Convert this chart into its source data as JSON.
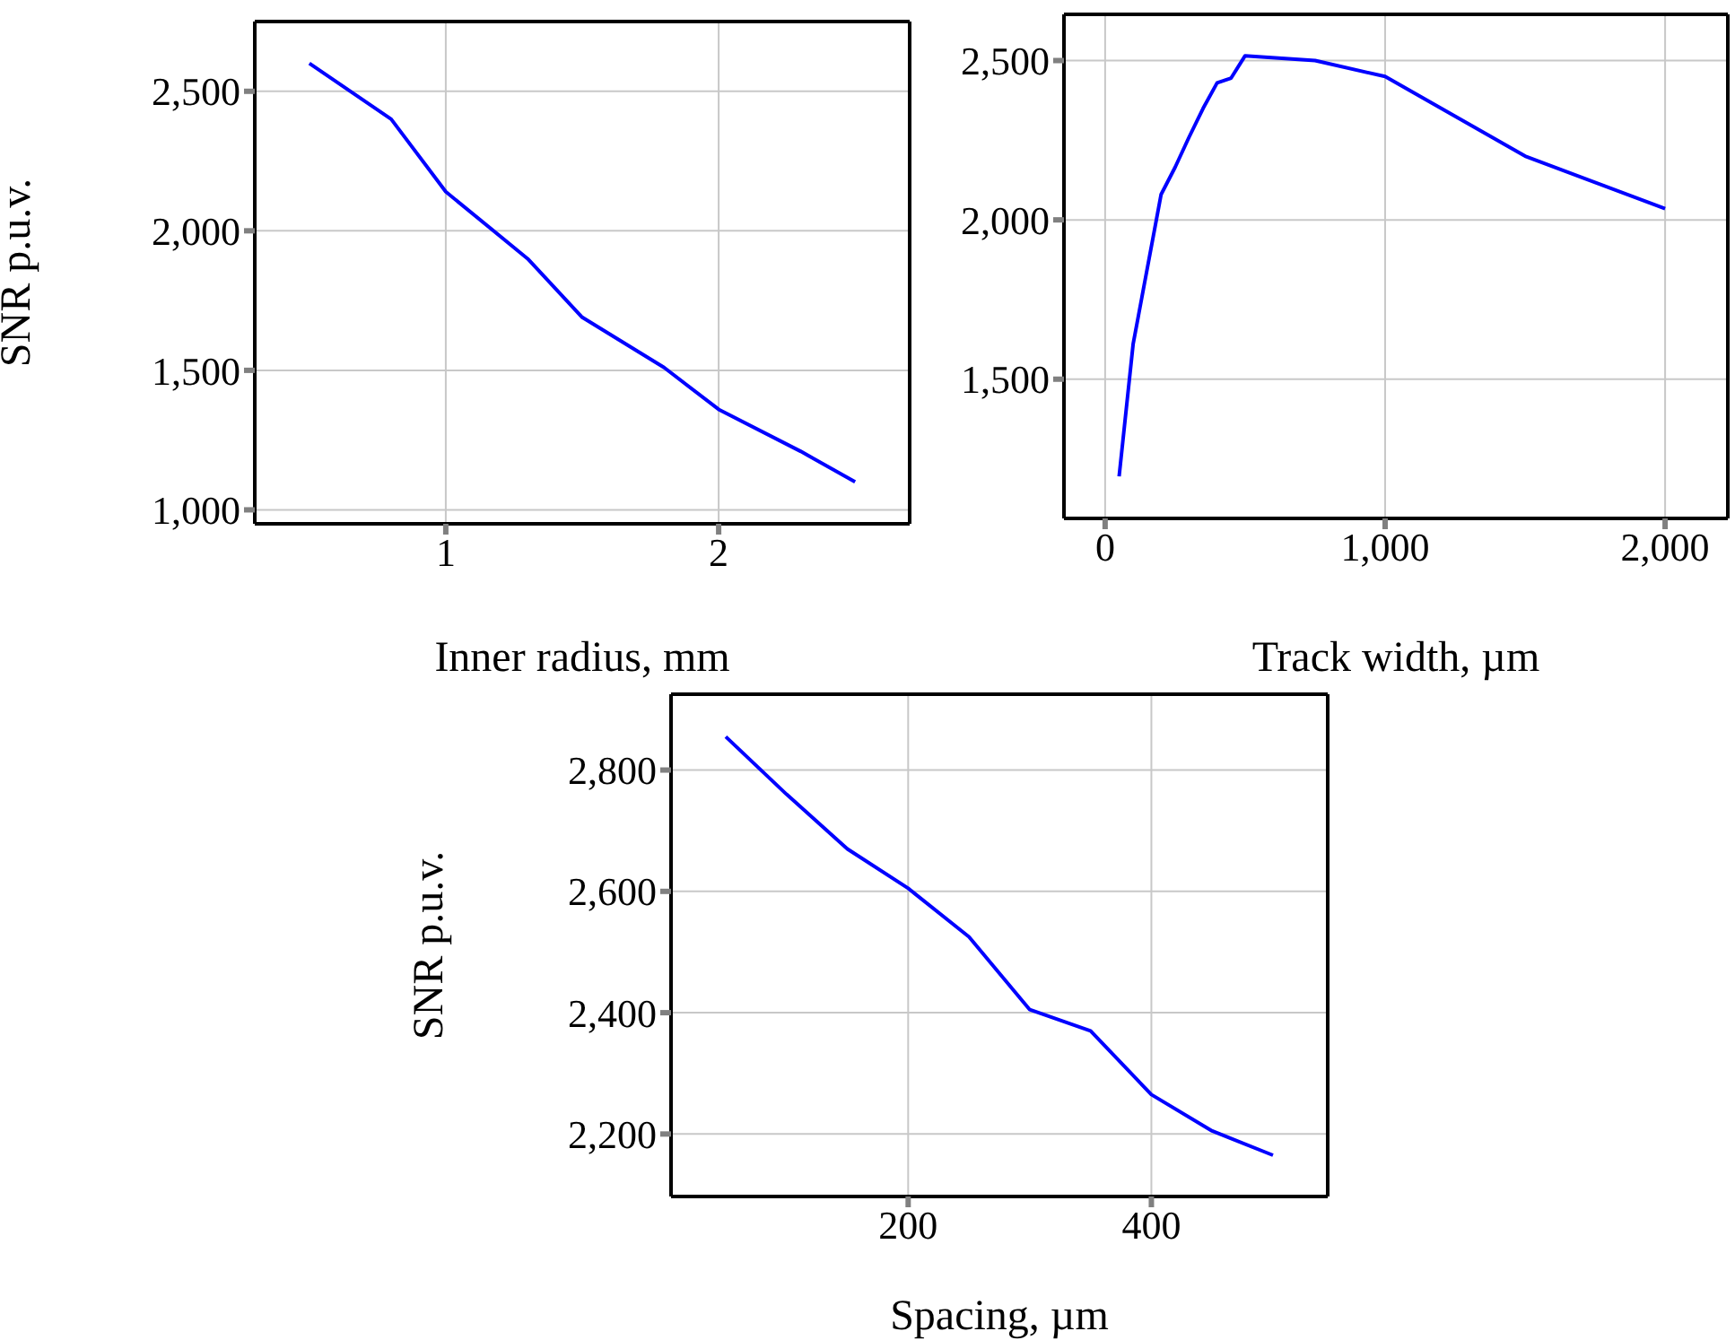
{
  "chart_data": [
    {
      "type": "line",
      "xlabel": "Inner radius, mm",
      "ylabel": "SNR p.u.v.",
      "x": [
        0.5,
        0.8,
        1.0,
        1.3,
        1.5,
        1.8,
        2.0,
        2.3,
        2.5
      ],
      "series": [
        {
          "color": "#0000ff",
          "values": [
            2600,
            2400,
            2140,
            1900,
            1690,
            1510,
            1360,
            1210,
            1100
          ]
        }
      ],
      "xlim": [
        0.3,
        2.7
      ],
      "ylim": [
        950,
        2750
      ],
      "xticks": [
        1,
        2
      ],
      "yticks": [
        {
          "value": 1000,
          "label": "1,000"
        },
        {
          "value": 1500,
          "label": "1,500"
        },
        {
          "value": 2000,
          "label": "2,000"
        },
        {
          "value": 2500,
          "label": "2,500"
        }
      ],
      "grid": true,
      "marker": "none",
      "line_style": "solid"
    },
    {
      "type": "line",
      "xlabel": "Track width, µm",
      "x": [
        50,
        100,
        200,
        250,
        300,
        350,
        400,
        450,
        500,
        750,
        1000,
        1500,
        2000
      ],
      "series": [
        {
          "color": "#0000ff",
          "values": [
            1195,
            1610,
            2080,
            2165,
            2260,
            2350,
            2430,
            2445,
            2515,
            2500,
            2450,
            2200,
            2035
          ]
        }
      ],
      "xlim": [
        -147,
        2224
      ],
      "ylim": [
        1063,
        2645
      ],
      "xticks": [
        0,
        {
          "value": 1000,
          "label": "1,000"
        },
        {
          "value": 2000,
          "label": "2,000"
        }
      ],
      "yticks": [
        {
          "value": 1500,
          "label": "1,500"
        },
        {
          "value": 2000,
          "label": "2,000"
        },
        {
          "value": 2500,
          "label": "2,500"
        }
      ],
      "grid": true,
      "marker": "none",
      "line_style": "solid"
    },
    {
      "type": "line",
      "xlabel": "Spacing, µm",
      "ylabel": "SNR p.u.v.",
      "x": [
        50,
        100,
        150,
        200,
        250,
        300,
        350,
        400,
        450,
        500
      ],
      "series": [
        {
          "color": "#0000ff",
          "values": [
            2855,
            2760,
            2670,
            2605,
            2525,
            2405,
            2370,
            2265,
            2205,
            2165
          ]
        }
      ],
      "xlim": [
        5,
        545
      ],
      "ylim": [
        2097,
        2925
      ],
      "xticks": [
        200,
        400
      ],
      "yticks": [
        {
          "value": 2200,
          "label": "2,200"
        },
        {
          "value": 2400,
          "label": "2,400"
        },
        {
          "value": 2600,
          "label": "2,600"
        },
        {
          "value": 2800,
          "label": "2,800"
        }
      ],
      "grid": true,
      "marker": "none",
      "line_style": "solid"
    }
  ]
}
